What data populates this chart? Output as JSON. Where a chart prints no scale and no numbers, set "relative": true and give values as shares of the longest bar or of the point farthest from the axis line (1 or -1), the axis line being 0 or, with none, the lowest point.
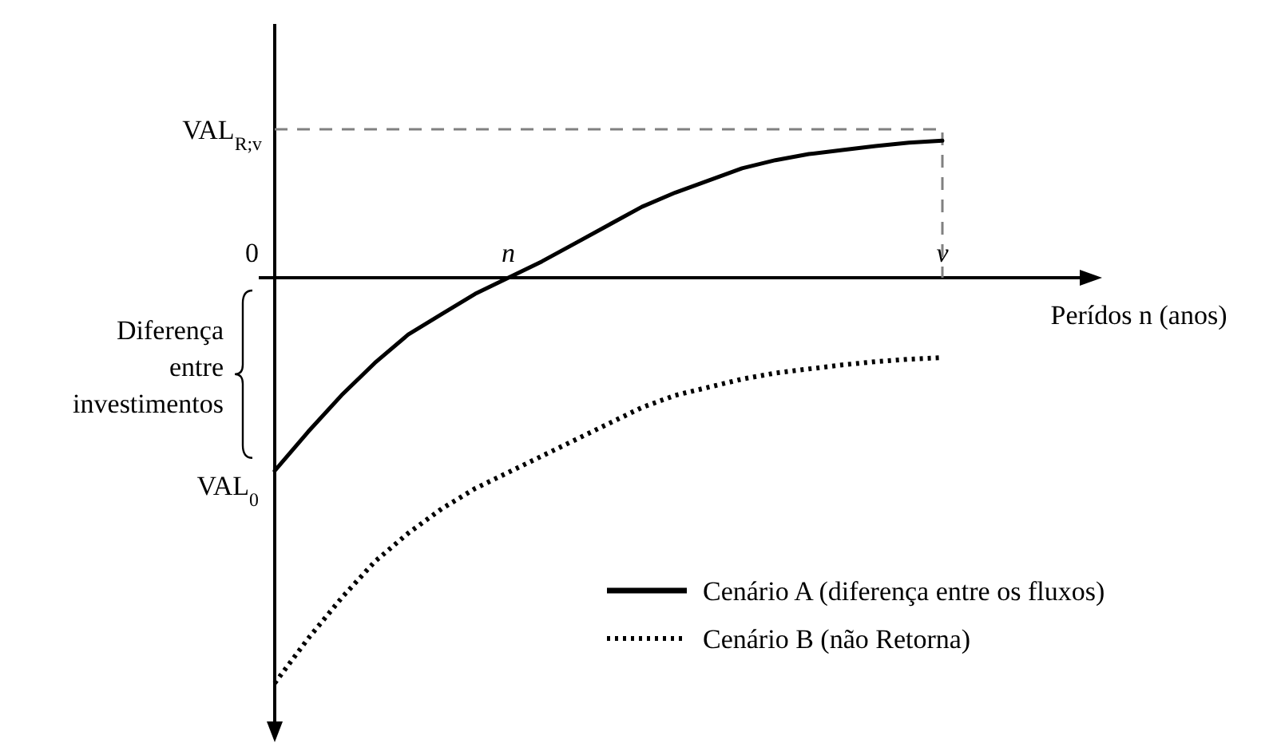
{
  "chart_data": {
    "type": "line",
    "relative": true,
    "xlabel": "Perídos n (anos)",
    "categories": [
      null,
      null,
      null,
      null,
      null,
      null,
      null,
      "n",
      null,
      null,
      null,
      null,
      null,
      null,
      null,
      null,
      null,
      null,
      null,
      null,
      "v"
    ],
    "series": [
      {
        "name": "Cenário A (diferença entre os fluxos)",
        "color": "#000000",
        "line_style": "solid",
        "values": [
          -0.476,
          -0.38,
          -0.29,
          -0.21,
          -0.14,
          -0.09,
          -0.04,
          0,
          0.04,
          0.085,
          0.13,
          0.175,
          0.21,
          0.24,
          0.27,
          0.29,
          0.305,
          0.315,
          0.325,
          0.333,
          0.338
        ]
      },
      {
        "name": "Cenário B (não Retorna)",
        "color": "#000000",
        "line_style": "dotted",
        "values": [
          -1,
          -0.89,
          -0.79,
          -0.7,
          -0.63,
          -0.57,
          -0.52,
          -0.48,
          -0.44,
          -0.4,
          -0.36,
          -0.32,
          -0.29,
          -0.27,
          -0.25,
          -0.235,
          -0.225,
          -0.215,
          -0.207,
          -0.201,
          -0.197
        ]
      }
    ],
    "ref_lines": [
      {
        "axis": "y",
        "value": 0.366,
        "label": "VAL$_{R;v}$",
        "color": "#808080",
        "line_style": "dashed"
      }
    ],
    "annotations": [
      "0",
      "VAL$_{0}$",
      "Diferença entre investimentos"
    ],
    "legend": "bottom right"
  }
}
